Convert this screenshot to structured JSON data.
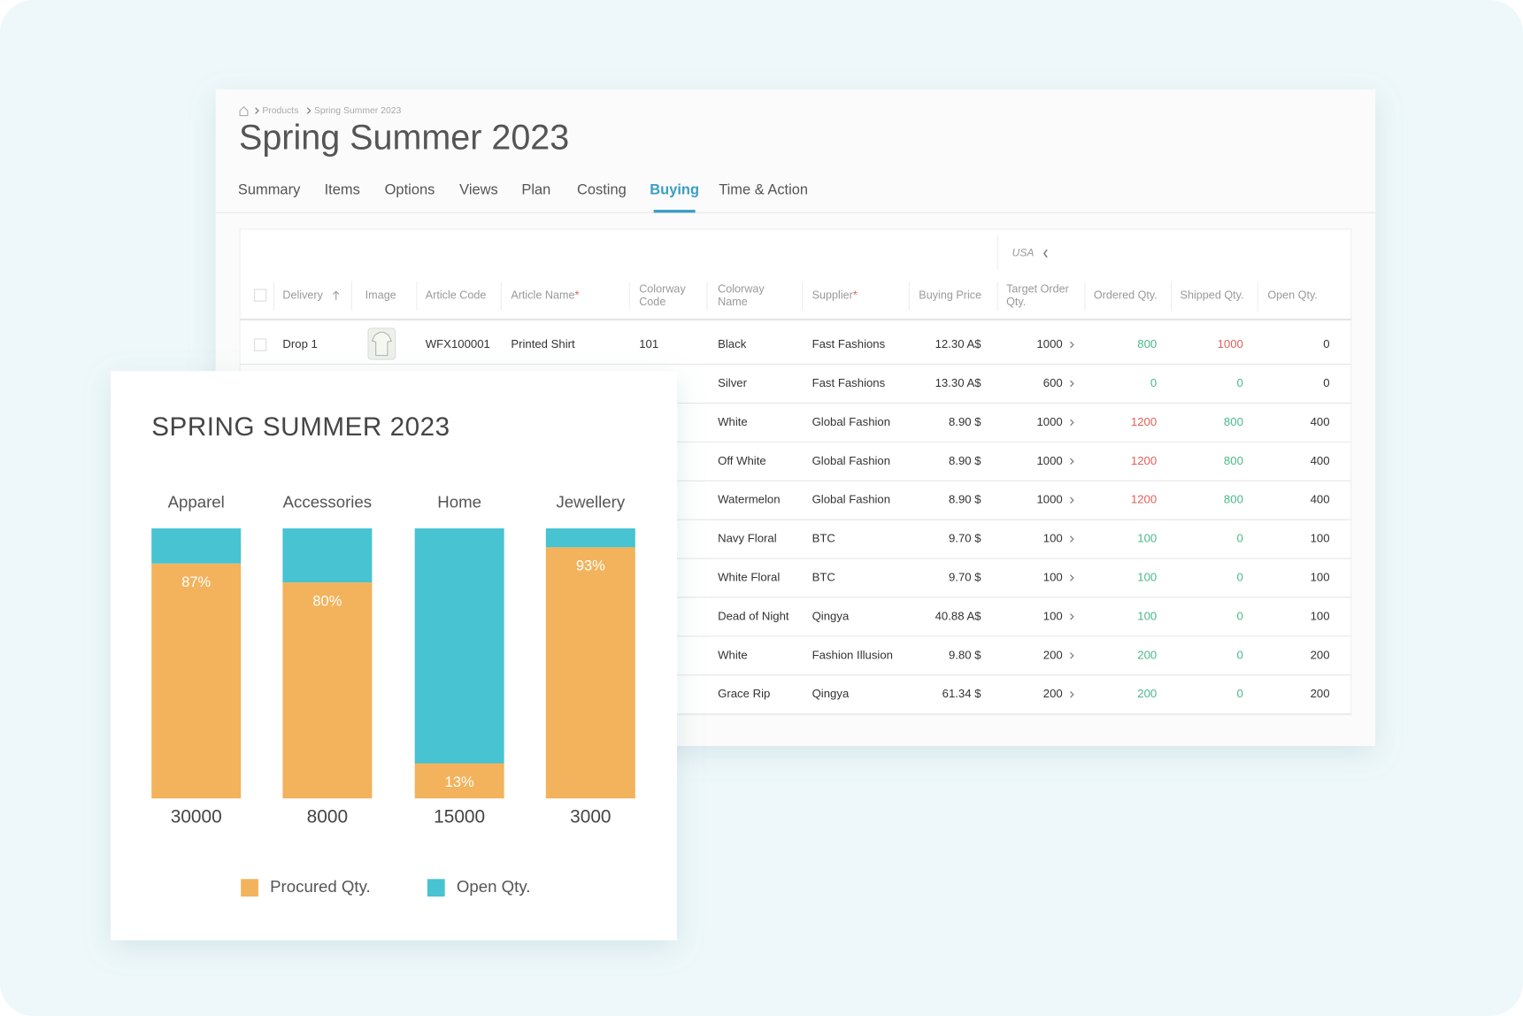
{
  "breadcrumb": [
    "Products",
    "Spring Summer 2023"
  ],
  "title": "Spring Summer 2023",
  "tabs": [
    "Summary",
    "Items",
    "Options",
    "Views",
    "Plan",
    "Costing",
    "Buying",
    "Time & Action"
  ],
  "active_tab": 6,
  "table": {
    "region": "USA",
    "headers": [
      {
        "lines": [
          "Delivery"
        ]
      },
      {
        "lines": [
          "Image"
        ]
      },
      {
        "lines": [
          "Article Code"
        ]
      },
      {
        "lines": [
          "Article Name"
        ],
        "required": "*"
      },
      {
        "lines": [
          "Colorway",
          "Code"
        ]
      },
      {
        "lines": [
          "Colorway",
          "Name"
        ]
      },
      {
        "lines": [
          "Supplier"
        ],
        "required": "*"
      },
      {
        "lines": [
          "Buying Price"
        ]
      },
      {
        "lines": [
          "Target Order",
          "Qty."
        ]
      },
      {
        "lines": [
          "Ordered Qty."
        ]
      },
      {
        "lines": [
          "Shipped Qty."
        ]
      },
      {
        "lines": [
          "Open Qty."
        ]
      }
    ],
    "rows": [
      {
        "delivery": "Drop 1",
        "article_code": "WFX100001",
        "article_name": "Printed Shirt",
        "colorway_code": "101",
        "colorway_name": "Black",
        "supplier": "Fast Fashions",
        "buying_price": "12.30 A$",
        "target_qty": 1000,
        "ordered_qty": 800,
        "shipped_qty": 1000,
        "open_qty": 0
      },
      {
        "colorway_name": "Silver",
        "supplier": "Fast Fashions",
        "buying_price": "13.30 A$",
        "target_qty": 600,
        "ordered_qty": 0,
        "shipped_qty": 0,
        "open_qty": 0
      },
      {
        "colorway_name": "White",
        "supplier": "Global Fashion",
        "buying_price": "8.90 $",
        "target_qty": 1000,
        "ordered_qty": 1200,
        "shipped_qty": 800,
        "open_qty": 400
      },
      {
        "colorway_name": "Off White",
        "supplier": "Global Fashion",
        "buying_price": "8.90 $",
        "target_qty": 1000,
        "ordered_qty": 1200,
        "shipped_qty": 800,
        "open_qty": 400
      },
      {
        "colorway_name": "Watermelon",
        "supplier": "Global Fashion",
        "buying_price": "8.90 $",
        "target_qty": 1000,
        "ordered_qty": 1200,
        "shipped_qty": 800,
        "open_qty": 400
      },
      {
        "colorway_name": "Navy Floral",
        "supplier": "BTC",
        "buying_price": "9.70 $",
        "target_qty": 100,
        "ordered_qty": 100,
        "shipped_qty": 0,
        "open_qty": 100
      },
      {
        "colorway_name": "White Floral",
        "supplier": "BTC",
        "buying_price": "9.70 $",
        "target_qty": 100,
        "ordered_qty": 100,
        "shipped_qty": 0,
        "open_qty": 100
      },
      {
        "colorway_name": "Dead of Night",
        "supplier": "Qingya",
        "buying_price": "40.88 A$",
        "target_qty": 100,
        "ordered_qty": 100,
        "shipped_qty": 0,
        "open_qty": 100
      },
      {
        "colorway_name": "White",
        "supplier": "Fashion Illusion",
        "buying_price": "9.80 $",
        "target_qty": 200,
        "ordered_qty": 200,
        "shipped_qty": 0,
        "open_qty": 200
      },
      {
        "colorway_name": "Grace Rip",
        "supplier": "Qingya",
        "buying_price": "61.34 $",
        "target_qty": 200,
        "ordered_qty": 200,
        "shipped_qty": 0,
        "open_qty": 200
      }
    ]
  },
  "chart_data": {
    "type": "bar",
    "stacked": true,
    "title": "SPRING SUMMER 2023",
    "categories": [
      "Apparel",
      "Accessories",
      "Home",
      "Jewellery"
    ],
    "category_totals": [
      30000,
      8000,
      15000,
      3000
    ],
    "ylim": [
      0,
      100
    ],
    "series": [
      {
        "name": "Procured Qty.",
        "color": "#f2b35c",
        "values": [
          87,
          80,
          13,
          93
        ],
        "value_labels": [
          "87%",
          "80%",
          "13%",
          "93%"
        ]
      },
      {
        "name": "Open Qty.",
        "color": "#47c3d1",
        "values": [
          13,
          20,
          87,
          7
        ]
      }
    ]
  }
}
